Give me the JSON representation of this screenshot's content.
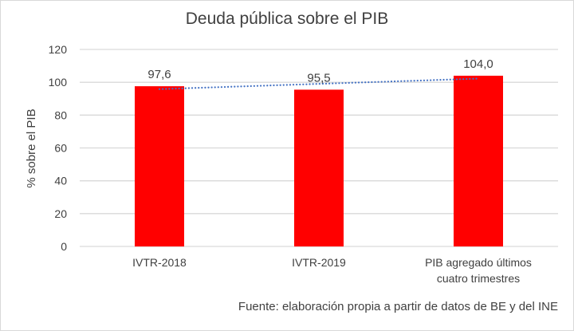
{
  "chart_data": {
    "type": "bar",
    "title": "Deuda pública sobre el PIB",
    "ylabel": "% sobre el PIB",
    "xlabel": "",
    "categories": [
      [
        "IVTR-2018"
      ],
      [
        "IVTR-2019"
      ],
      [
        "PIB agregado últimos",
        "cuatro trimestres"
      ]
    ],
    "values": [
      97.6,
      95.5,
      104.0
    ],
    "data_labels": [
      "97,6",
      "95,5",
      "104,0"
    ],
    "ylim": [
      0,
      120
    ],
    "yticks": [
      0,
      20,
      40,
      60,
      80,
      100,
      120
    ],
    "grid": true,
    "trendline": {
      "type": "linear",
      "style": "dotted"
    },
    "source": "Fuente: elaboración propia a partir de datos de BE y del INE",
    "colors": {
      "bar": "#ff0000",
      "trendline": "#4472c4",
      "grid": "#d9d9d9"
    }
  }
}
